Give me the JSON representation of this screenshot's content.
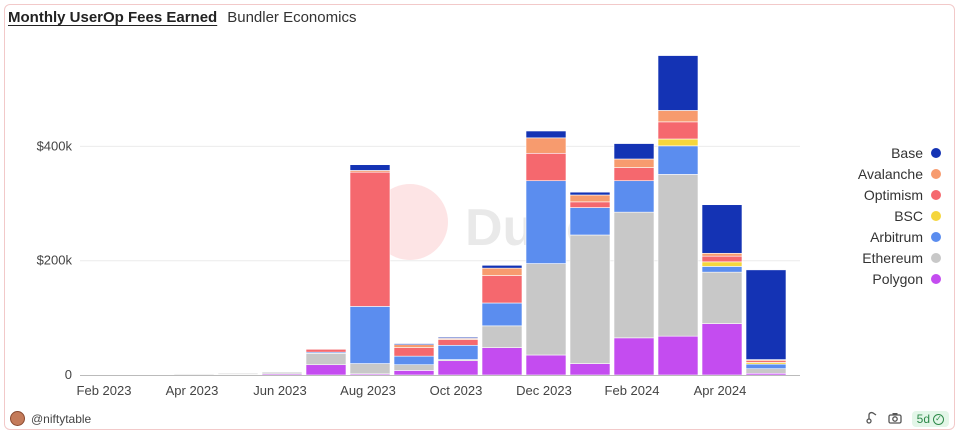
{
  "header": {
    "title": "Monthly UserOp Fees Earned",
    "subtitle": "Bundler Economics"
  },
  "watermark": "Dune",
  "footer": {
    "author": "@niftytable",
    "refresh_badge": "5d"
  },
  "icons": {
    "author_avatar": "avatar-icon",
    "share": "share-icon",
    "camera": "camera-icon",
    "check": "check-circle-icon"
  },
  "chart_data": {
    "type": "bar",
    "stacked": true,
    "title": "Monthly UserOp Fees Earned",
    "xlabel": "",
    "ylabel": "",
    "ylim": [
      0,
      560000
    ],
    "y_ticks": [
      0,
      200000,
      400000
    ],
    "y_tick_labels": [
      "0",
      "$200k",
      "$400k"
    ],
    "x_tick_labels": [
      "Feb 2023",
      "Apr 2023",
      "Jun 2023",
      "Aug 2023",
      "Oct 2023",
      "Dec 2023",
      "Feb 2024",
      "Apr 2024"
    ],
    "x_tick_index": [
      0,
      2,
      4,
      6,
      8,
      10,
      12,
      14
    ],
    "categories": [
      "Jan 2023",
      "Feb 2023",
      "Mar 2023",
      "Apr 2023",
      "May 2023",
      "Jun 2023",
      "Jul 2023",
      "Aug 2023",
      "Sep 2023",
      "Oct 2023",
      "Nov 2023",
      "Dec 2023",
      "Jan 2024",
      "Feb 2024",
      "Mar 2024",
      "Apr 2024",
      "May 2024"
    ],
    "grid": true,
    "legend_position": "right",
    "series": [
      {
        "name": "Polygon",
        "color": "#c44cf0",
        "values": [
          0,
          0,
          500,
          1000,
          2000,
          18000,
          2000,
          8000,
          25000,
          48000,
          35000,
          20000,
          65000,
          68000,
          90000,
          3000,
          0
        ]
      },
      {
        "name": "Ethereum",
        "color": "#c8c8c8",
        "values": [
          0,
          0,
          1500,
          2000,
          3000,
          20000,
          18000,
          10000,
          2000,
          38000,
          160000,
          225000,
          220000,
          283000,
          90000,
          8000,
          0
        ]
      },
      {
        "name": "Arbitrum",
        "color": "#5b8def",
        "values": [
          0,
          0,
          0,
          500,
          500,
          2000,
          100000,
          15000,
          25000,
          40000,
          145000,
          48000,
          55000,
          50000,
          10000,
          8000,
          0
        ]
      },
      {
        "name": "BSC",
        "color": "#f5d63d",
        "values": [
          0,
          0,
          0,
          0,
          0,
          0,
          0,
          0,
          0,
          0,
          0,
          0,
          0,
          12000,
          8000,
          3000,
          0
        ]
      },
      {
        "name": "Optimism",
        "color": "#f5686e",
        "values": [
          0,
          0,
          0,
          0,
          500,
          5000,
          235000,
          15000,
          10000,
          48000,
          48000,
          10000,
          23000,
          30000,
          10000,
          3000,
          0
        ]
      },
      {
        "name": "Avalanche",
        "color": "#f79b6e",
        "values": [
          0,
          0,
          0,
          0,
          0,
          0,
          3000,
          5000,
          2000,
          13000,
          27000,
          12000,
          15000,
          20000,
          5000,
          2000,
          0
        ]
      },
      {
        "name": "Base",
        "color": "#1433b4",
        "values": [
          0,
          0,
          0,
          0,
          0,
          0,
          10000,
          2000,
          2000,
          5000,
          12000,
          5000,
          27000,
          96000,
          85000,
          157000,
          0
        ]
      }
    ],
    "legend_order": [
      "Base",
      "Avalanche",
      "Optimism",
      "BSC",
      "Arbitrum",
      "Ethereum",
      "Polygon"
    ]
  }
}
